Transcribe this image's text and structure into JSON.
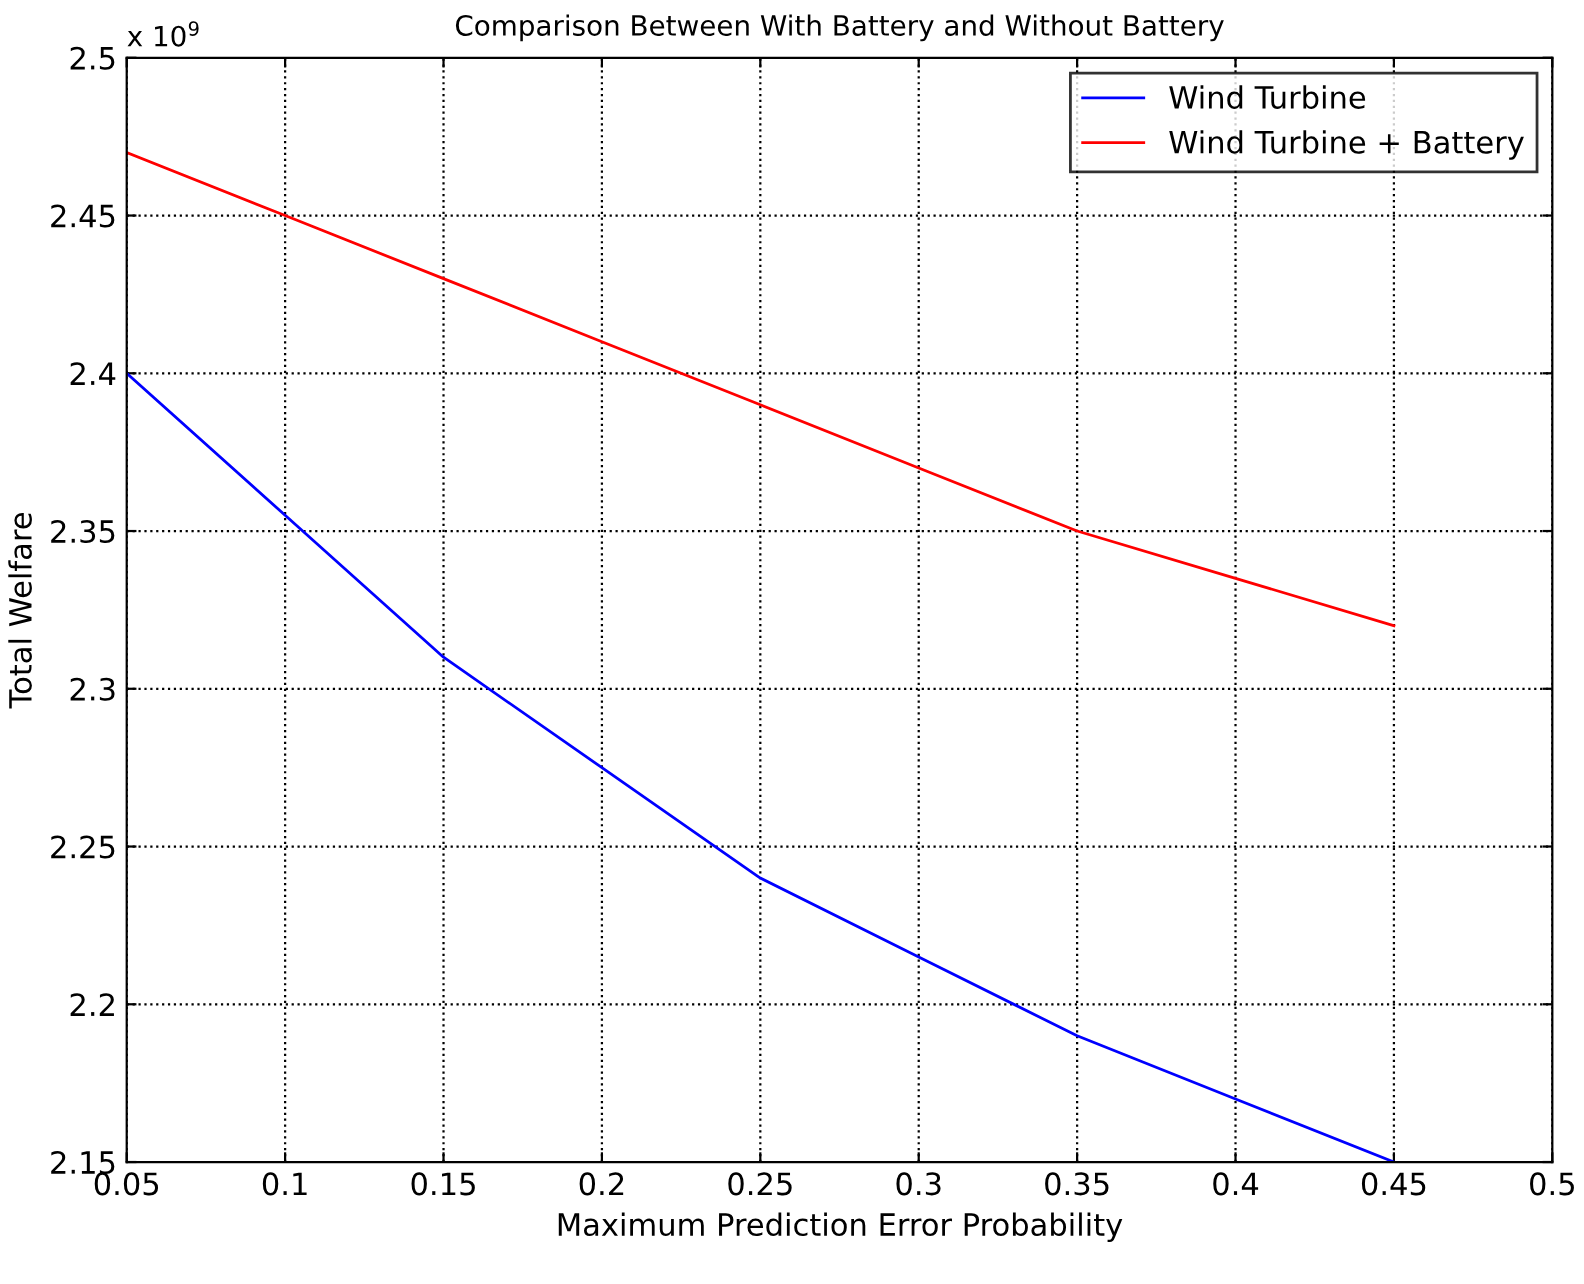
{
  "chart_data": {
    "type": "line",
    "title": "Comparison Between With Battery and Without Battery",
    "xlabel": "Maximum Prediction Error Probability",
    "ylabel": "Total Welfare",
    "annotations": [
      "x 10$^{9}$"
    ],
    "x": [
      0.05,
      0.1,
      0.15,
      0.2,
      0.25,
      0.3,
      0.35,
      0.4,
      0.45
    ],
    "series": [
      {
        "name": "Wind Turbine",
        "color": "#0000ff",
        "values": [
          2.4,
          2.355,
          2.31,
          2.275,
          2.24,
          2.215,
          2.19,
          2.17,
          2.15
        ]
      },
      {
        "name": "Wind Turbine + Battery",
        "color": "#ff0000",
        "values": [
          2.47,
          2.45,
          2.43,
          2.41,
          2.39,
          2.37,
          2.35,
          2.335,
          2.32
        ]
      }
    ],
    "xlim": [
      0.05,
      0.5
    ],
    "xticks": [
      0.05,
      0.1,
      0.15,
      0.2,
      0.25,
      0.3,
      0.35,
      0.4,
      0.45,
      0.5
    ],
    "ylim": [
      2.15,
      2.5
    ],
    "yticks": [
      2.15,
      2.2,
      2.25,
      2.3,
      2.35,
      2.4,
      2.45,
      2.5
    ],
    "grid": true,
    "legend": "top right",
    "line_style": "solid",
    "marker": "none"
  }
}
